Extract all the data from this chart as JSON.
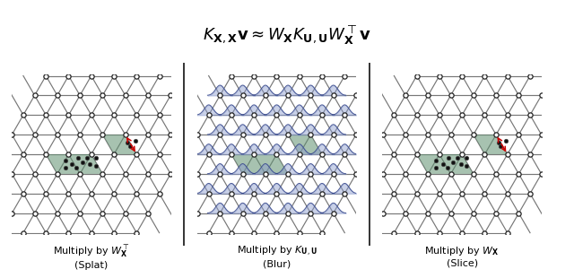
{
  "title_formula": "$K_{\\mathbf{X},\\mathbf{X}}\\mathbf{v} \\approx W_{\\mathbf{X}} K_{\\mathbf{U},\\mathbf{U}} W_{\\mathbf{X}}^\\top \\mathbf{v}$",
  "panel_labels": [
    "Multiply by $W_{\\mathbf{X}}^\\top$\n(Splat)",
    "Multiply by $K_{\\mathbf{U},\\mathbf{U}}$\n(Blur)",
    "Multiply by $W_{\\mathbf{X}}$\n(Slice)"
  ],
  "bg_color": "#ffffff",
  "grid_color": "#777777",
  "lattice_fill_color": "#5f9070",
  "lattice_fill_alpha": 0.55,
  "node_color": "#ffffff",
  "node_edge_color": "#222222",
  "dot_color": "#111111",
  "arrow_color": "#cc0000",
  "gaussian_color": "#8899cc",
  "gaussian_edge_color": "#334488",
  "gaussian_fill_alpha": 0.45,
  "border_color": "#000000",
  "separator_color": "#333333"
}
